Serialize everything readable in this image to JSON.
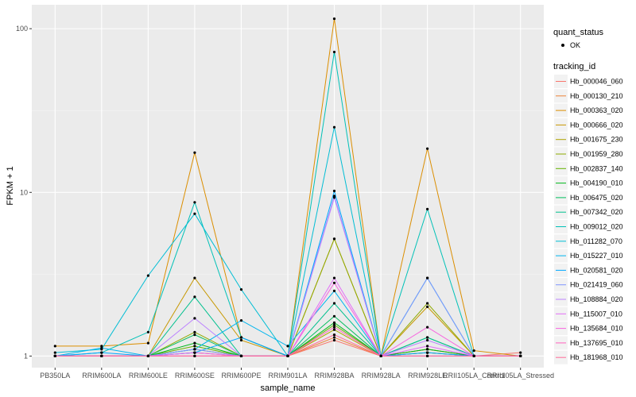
{
  "chart_data": {
    "type": "line",
    "xlabel": "sample_name",
    "ylabel": "FPKM + 1",
    "y_scale": "log10",
    "ylim": [
      0.85,
      140
    ],
    "y_ticks": [
      1,
      10,
      100
    ],
    "y_tick_labels": [
      "1",
      "10",
      "100"
    ],
    "grid": true,
    "legend_position": "right",
    "categories": [
      "PB350LA",
      "RRIM600LA",
      "RRIM600LE",
      "RRIM600SE",
      "RRIM600PE",
      "RRIM901LA",
      "RRIM928BA",
      "RRIM928LA",
      "RRIM928LE",
      "RRII105LA_Control",
      "RRII105LA_Stressed"
    ],
    "point_legend": {
      "title": "quant_status",
      "label": "OK"
    },
    "series_legend_title": "tracking_id",
    "series": [
      {
        "name": "Hb_000046_060",
        "color": "#F8766D",
        "values": [
          1.0,
          1.0,
          1.0,
          1.05,
          1.0,
          1.0,
          1.25,
          1.0,
          1.05,
          1.0,
          1.05
        ]
      },
      {
        "name": "Hb_000130_210",
        "color": "#EC8239",
        "values": [
          1.0,
          1.0,
          1.0,
          1.05,
          1.0,
          1.0,
          1.3,
          1.0,
          1.1,
          1.0,
          1.0
        ]
      },
      {
        "name": "Hb_000363_020",
        "color": "#DB8E00",
        "values": [
          1.15,
          1.15,
          1.2,
          17.5,
          1.3,
          1.0,
          115,
          1.0,
          18.5,
          1.08,
          1.0
        ]
      },
      {
        "name": "Hb_000666_020",
        "color": "#C79800",
        "values": [
          1.0,
          1.0,
          1.0,
          3.0,
          1.25,
          1.0,
          5.2,
          1.0,
          2.0,
          1.0,
          1.0
        ]
      },
      {
        "name": "Hb_001675_230",
        "color": "#AEA200",
        "values": [
          1.0,
          1.0,
          1.0,
          1.1,
          1.0,
          1.0,
          1.45,
          1.0,
          1.1,
          1.0,
          1.0
        ]
      },
      {
        "name": "Hb_001959_280",
        "color": "#8FAA00",
        "values": [
          1.0,
          1.0,
          1.0,
          1.4,
          1.0,
          1.0,
          5.2,
          1.0,
          2.1,
          1.0,
          1.0
        ]
      },
      {
        "name": "Hb_002837_140",
        "color": "#64B200",
        "values": [
          1.0,
          1.0,
          1.0,
          1.15,
          1.0,
          1.0,
          1.55,
          1.0,
          1.05,
          1.0,
          1.0
        ]
      },
      {
        "name": "Hb_004190_010",
        "color": "#00B81B",
        "values": [
          1.0,
          1.0,
          1.0,
          1.2,
          1.0,
          1.0,
          1.6,
          1.0,
          1.1,
          1.0,
          1.0
        ]
      },
      {
        "name": "Hb_006475_020",
        "color": "#00BD5C",
        "values": [
          1.0,
          1.0,
          1.0,
          1.35,
          1.0,
          1.0,
          1.75,
          1.0,
          1.3,
          1.0,
          1.0
        ]
      },
      {
        "name": "Hb_007342_020",
        "color": "#00C08E",
        "values": [
          1.0,
          1.0,
          1.0,
          2.3,
          1.0,
          1.0,
          2.1,
          1.0,
          1.3,
          1.0,
          1.0
        ]
      },
      {
        "name": "Hb_009012_020",
        "color": "#00C1B7",
        "values": [
          1.0,
          1.05,
          1.4,
          8.7,
          1.3,
          1.0,
          72,
          1.0,
          7.9,
          1.0,
          1.0
        ]
      },
      {
        "name": "Hb_011282_070",
        "color": "#00BDD4",
        "values": [
          1.05,
          1.1,
          3.1,
          7.4,
          2.55,
          1.0,
          25,
          1.0,
          3.0,
          1.0,
          1.0
        ]
      },
      {
        "name": "Hb_015227_010",
        "color": "#00B5EE",
        "values": [
          1.0,
          1.12,
          1.0,
          1.1,
          1.65,
          1.15,
          2.5,
          1.0,
          1.0,
          1.0,
          1.0
        ]
      },
      {
        "name": "Hb_020581_020",
        "color": "#00A7FF",
        "values": [
          1.0,
          1.05,
          1.0,
          1.05,
          1.3,
          1.0,
          10.2,
          1.0,
          1.05,
          1.0,
          1.0
        ]
      },
      {
        "name": "Hb_021419_060",
        "color": "#7F96FF",
        "values": [
          1.0,
          1.0,
          1.0,
          1.1,
          1.0,
          1.0,
          9.5,
          1.0,
          3.0,
          1.0,
          1.0
        ]
      },
      {
        "name": "Hb_108884_020",
        "color": "#BC81FF",
        "values": [
          1.0,
          1.0,
          1.0,
          1.7,
          1.0,
          1.0,
          9.3,
          1.0,
          1.25,
          1.0,
          1.0
        ]
      },
      {
        "name": "Hb_115007_010",
        "color": "#E26EF7",
        "values": [
          1.0,
          1.0,
          1.0,
          1.05,
          1.0,
          1.0,
          3.0,
          1.0,
          1.15,
          1.0,
          1.0
        ]
      },
      {
        "name": "Hb_135684_010",
        "color": "#F863DF",
        "values": [
          1.0,
          1.0,
          1.0,
          1.0,
          1.0,
          1.0,
          2.8,
          1.0,
          1.5,
          1.0,
          1.0
        ]
      },
      {
        "name": "Hb_137695_010",
        "color": "#FF62BF",
        "values": [
          1.0,
          1.0,
          1.0,
          1.0,
          1.0,
          1.0,
          1.5,
          1.0,
          1.0,
          1.0,
          1.0
        ]
      },
      {
        "name": "Hb_181968_010",
        "color": "#FF6A98",
        "values": [
          1.0,
          1.0,
          1.0,
          1.0,
          1.0,
          1.0,
          1.35,
          1.0,
          1.0,
          1.0,
          1.0
        ]
      }
    ]
  }
}
